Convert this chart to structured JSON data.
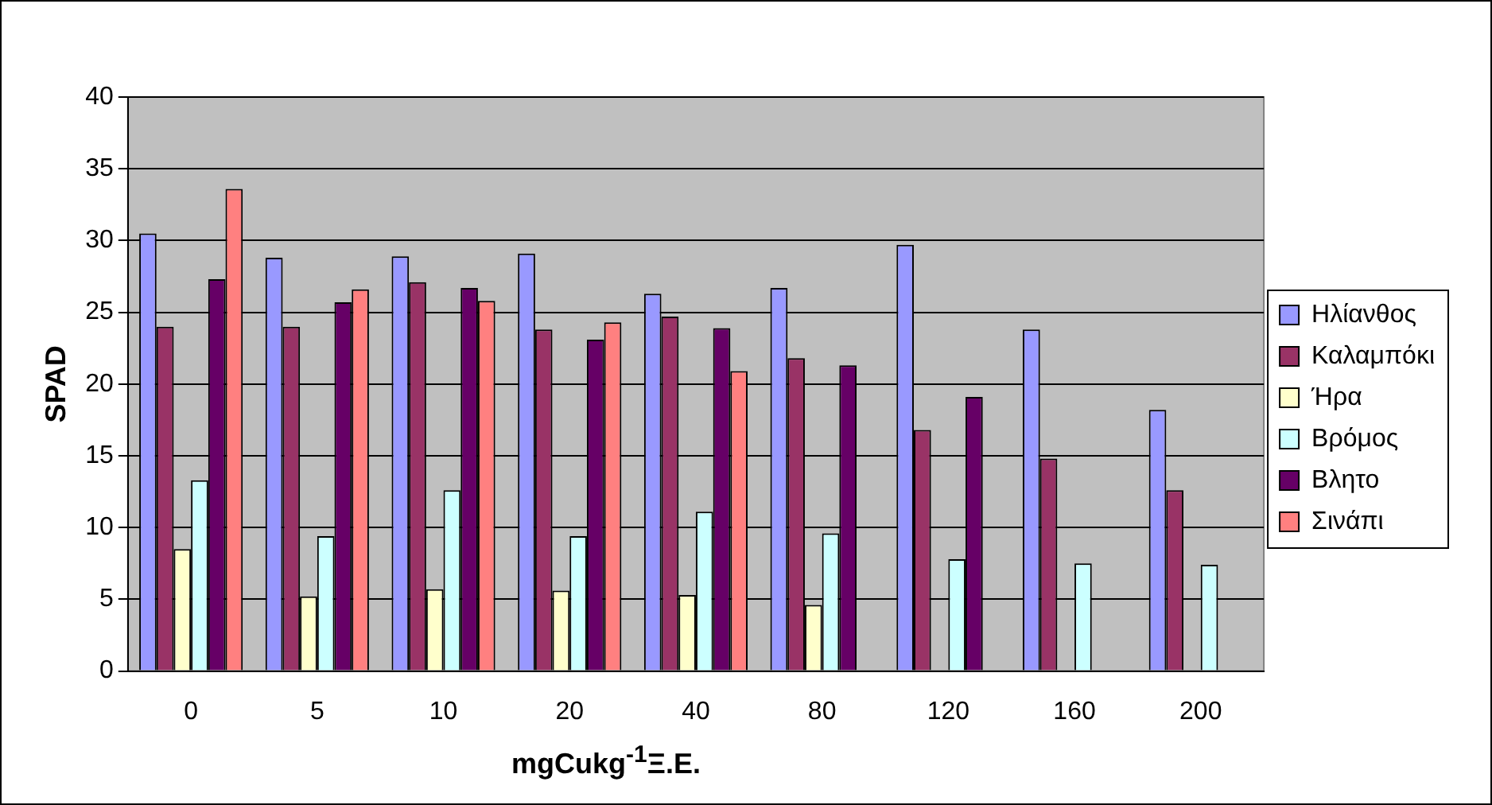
{
  "chart_data": {
    "type": "bar",
    "xlabel": "mgCukg$^{-1}$Ξ.Ε.",
    "ylabel": "SPAD",
    "categories": [
      "0",
      "5",
      "10",
      "20",
      "40",
      "80",
      "120",
      "160",
      "200"
    ],
    "series": [
      {
        "name": "Ηλίανθος",
        "color": "#9999ff",
        "values": [
          30.5,
          28.8,
          28.9,
          29.1,
          26.3,
          26.7,
          29.7,
          23.8,
          18.2
        ]
      },
      {
        "name": "Καλαμπόκι",
        "color": "#993366",
        "values": [
          24,
          24,
          27.1,
          23.8,
          24.7,
          21.8,
          16.8,
          14.8,
          12.6
        ]
      },
      {
        "name": "Ήρα",
        "color": "#ffffcc",
        "values": [
          8.5,
          5.2,
          5.7,
          5.6,
          5.3,
          4.6,
          null,
          null,
          null
        ]
      },
      {
        "name": "Βρόμος",
        "color": "#ccffff",
        "values": [
          13.3,
          9.4,
          12.6,
          9.4,
          11.1,
          9.6,
          7.8,
          7.5,
          7.4
        ]
      },
      {
        "name": "Βλητο",
        "color": "#660066",
        "values": [
          27.3,
          25.7,
          26.7,
          23.1,
          23.9,
          21.3,
          19.1,
          null,
          null
        ]
      },
      {
        "name": "Σινάπι",
        "color": "#ff8080",
        "values": [
          33.6,
          26.6,
          25.8,
          24.3,
          20.9,
          null,
          null,
          null,
          null
        ]
      }
    ],
    "ylim": [
      0,
      40
    ],
    "yticks": [
      0,
      5,
      10,
      15,
      20,
      25,
      30,
      35,
      40
    ],
    "grid": "y",
    "legend": "right"
  }
}
